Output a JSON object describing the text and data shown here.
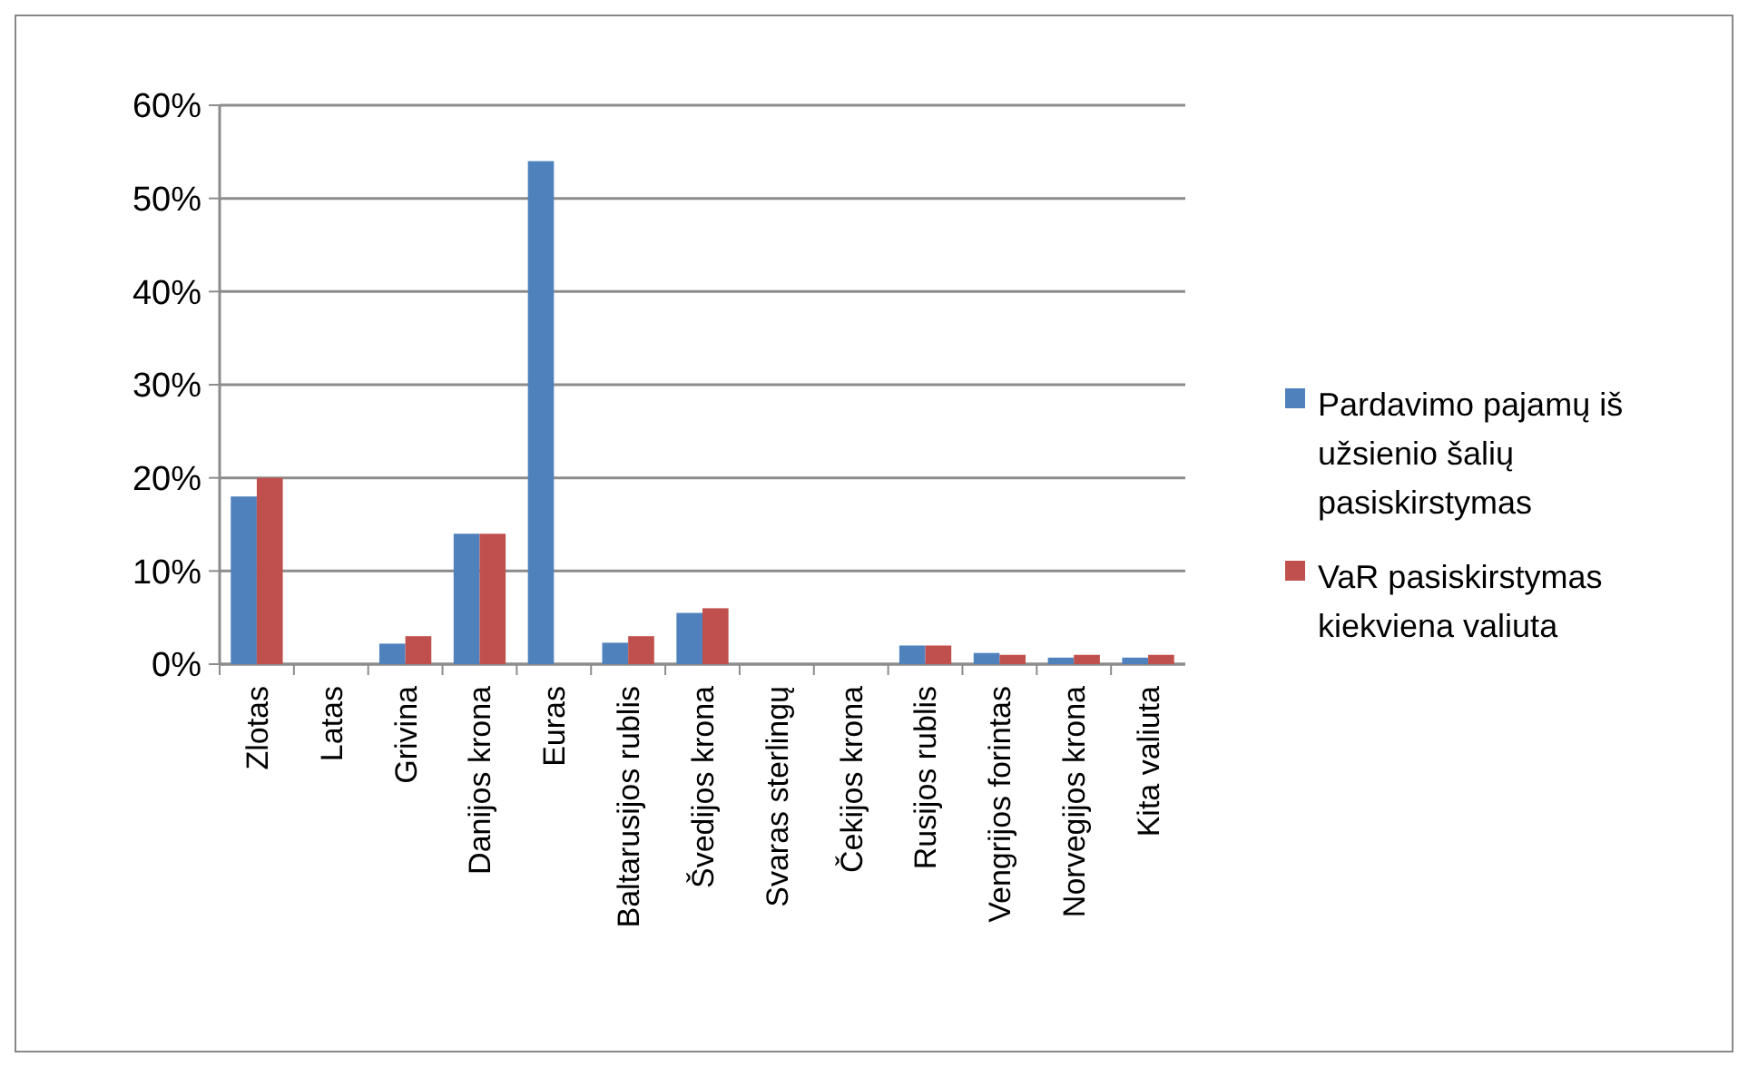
{
  "chart_data": {
    "type": "bar",
    "categories": [
      "Zlotas",
      "Latas",
      "Grivina",
      "Danijos krona",
      "Euras",
      "Baltarusijos rublis",
      "Švedijos krona",
      "Svaras sterlingų",
      "Čekijos krona",
      "Rusijos rublis",
      "Vengrijos forintas",
      "Norvegijos krona",
      "Kita valiuta"
    ],
    "series": [
      {
        "name": "Pardavimo pajamų iš užsienio šalių pasiskirstymas",
        "color": "#4f81bd",
        "values": [
          18,
          0,
          2.2,
          14,
          54,
          2.3,
          5.5,
          0,
          0,
          2,
          1.2,
          0.7,
          0.7
        ]
      },
      {
        "name": "VaR pasiskirstymas kiekviena valiuta",
        "color": "#c0504d",
        "values": [
          20,
          0,
          3,
          14,
          0,
          3,
          6,
          0,
          0,
          2,
          1,
          1,
          1
        ]
      }
    ],
    "ylim": [
      0,
      60
    ],
    "yticks": [
      {
        "value": 0,
        "label": "0%"
      },
      {
        "value": 10,
        "label": "10%"
      },
      {
        "value": 20,
        "label": "20%"
      },
      {
        "value": 30,
        "label": "30%"
      },
      {
        "value": 40,
        "label": "40%"
      },
      {
        "value": 50,
        "label": "50%"
      },
      {
        "value": 60,
        "label": "60%"
      }
    ],
    "grid": "y",
    "legend": "right"
  }
}
